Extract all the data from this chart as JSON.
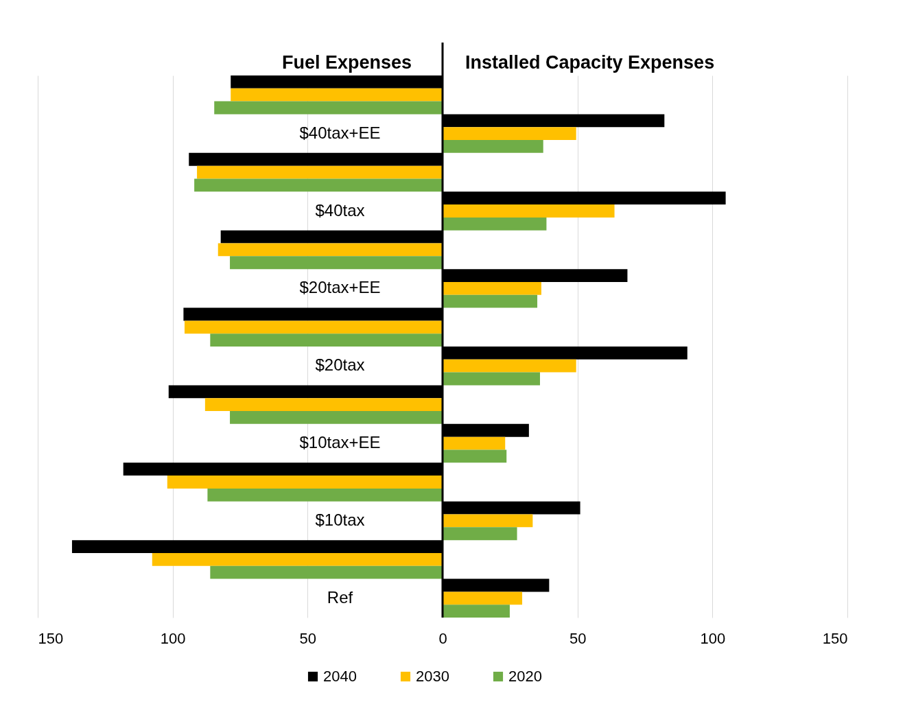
{
  "chart_data": {
    "type": "bar",
    "orientation": "horizontal",
    "annotations": [
      "Fuel Expenses",
      "Installed Capacity Expenses"
    ],
    "categories": [
      null,
      "$40tax+EE",
      null,
      "$40tax",
      null,
      "$20tax+EE",
      null,
      "$20tax",
      null,
      "$10tax+EE",
      null,
      "$10tax",
      null,
      "Ref"
    ],
    "series": [
      {
        "name": "2040",
        "color": "#000000",
        "values": [
          -78.5,
          82.2,
          -94,
          104.9,
          -82.2,
          68.5,
          -96,
          90.7,
          -101.5,
          32,
          -118.3,
          51,
          -137.3,
          39.5
        ]
      },
      {
        "name": "2030",
        "color": "#ffc000",
        "values": [
          -78.5,
          49.5,
          -91,
          63.7,
          -83.2,
          36.6,
          -95.6,
          49.5,
          -88,
          23.2,
          -102,
          33.4,
          -107.6,
          29.5
        ]
      },
      {
        "name": "2020",
        "color": "#70ad47",
        "values": [
          -84.6,
          37.3,
          -92,
          38.5,
          -78.8,
          35.1,
          -86.1,
          36.1,
          -78.8,
          23.7,
          -87.1,
          27.6,
          -86.1,
          24.9
        ]
      }
    ],
    "xlim": [
      -150,
      150
    ],
    "xticks": [
      {
        "value": -150,
        "label": "150"
      },
      {
        "value": -100,
        "label": "100"
      },
      {
        "value": -50,
        "label": "50"
      },
      0,
      50,
      100,
      150
    ],
    "ref_lines": [
      {
        "axis": "x",
        "value": 0,
        "color": "#000000"
      }
    ],
    "grid": "x",
    "legend": "bottom"
  }
}
